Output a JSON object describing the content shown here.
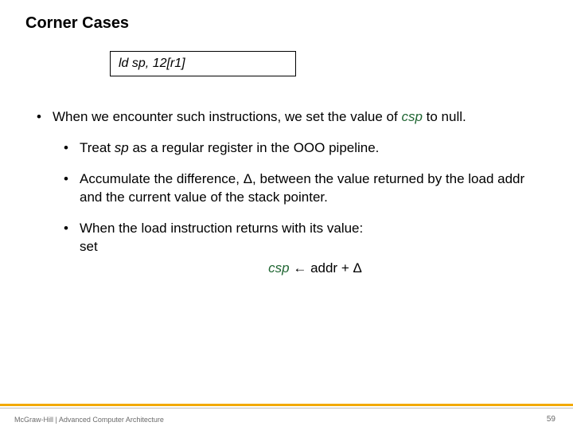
{
  "title": "Corner Cases",
  "code": "ld sp, 12[r1]",
  "bullets": {
    "l1": {
      "prefix": "When we encounter such instructions, we set the value of ",
      "csp": "csp",
      "suffix": " to null."
    },
    "l2a": {
      "prefix": "Treat ",
      "sp": "sp",
      "suffix": " as a regular register in the OOO pipeline."
    },
    "l2b": "Accumulate the difference, Δ, between the value returned by the load addr and the current value of the stack pointer.",
    "l2c": {
      "line1": "When the load instruction returns with its value:",
      "line2": "set",
      "formula_csp": "csp",
      "formula_rest": " ← addr + Δ"
    }
  },
  "footer": {
    "brand": "McGraw-Hill",
    "sep": " | ",
    "title": "Advanced Computer Architecture",
    "page": "59"
  },
  "colors": {
    "accent": "#f2a900",
    "csp": "#206633",
    "text": "#000000",
    "footer_text": "#6b6b6b",
    "background": "#ffffff"
  }
}
